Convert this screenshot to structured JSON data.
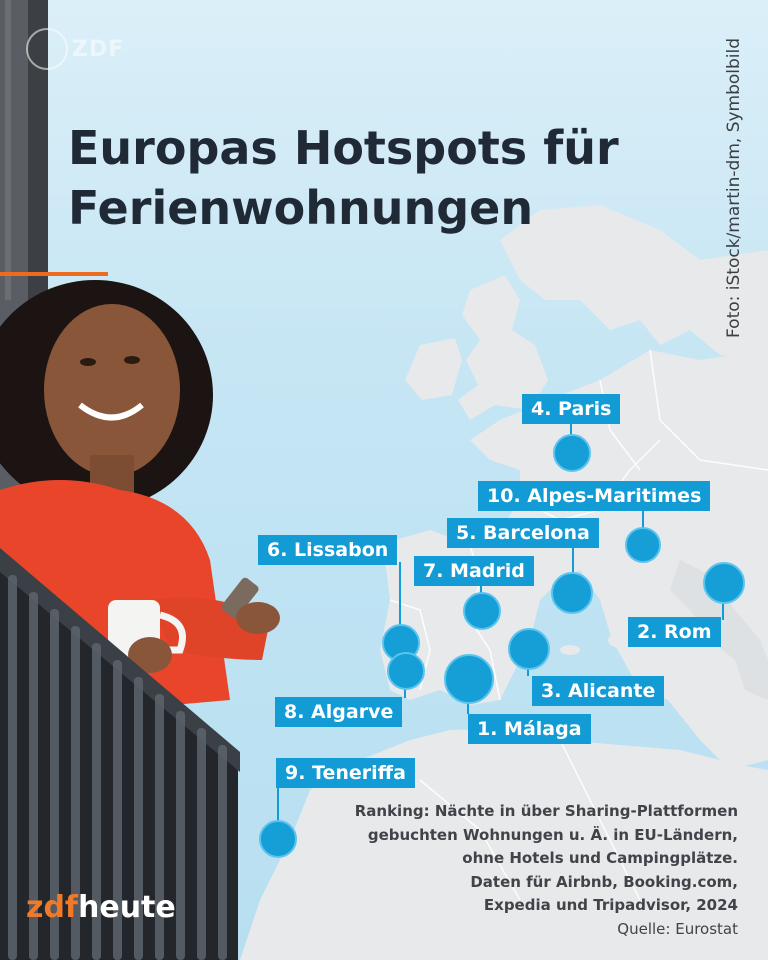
{
  "header": {
    "brand_mark": "ZDF",
    "title_line1": "Europas Hotspots für",
    "title_line2": "Ferienwohnungen",
    "accent_color": "#ee6a1f"
  },
  "photo_credit": "Foto: iStock/martin-dm, Symbolbild",
  "cities": [
    {
      "label": "4. Paris"
    },
    {
      "label": "10. Alpes-Maritimes"
    },
    {
      "label": "5. Barcelona"
    },
    {
      "label": "6. Lissabon"
    },
    {
      "label": "7. Madrid"
    },
    {
      "label": "2. Rom"
    },
    {
      "label": "3. Alicante"
    },
    {
      "label": "8. Algarve"
    },
    {
      "label": "1. Málaga"
    },
    {
      "label": "9. Teneriffa"
    }
  ],
  "footnote": {
    "line1": "Ranking: Nächte in über Sharing-Plattformen",
    "line2": "gebuchten Wohnungen u. Ä. in EU-Ländern,",
    "line3": "ohne Hotels und Campingplätze.",
    "line4": "Daten für Airbnb, Booking.com,",
    "line5": "Expedia und Tripadvisor, 2024",
    "source": "Quelle: Eurostat"
  },
  "logo": {
    "part1": "zdf",
    "part2": "heute"
  },
  "colors": {
    "marker": "#129bd4",
    "land": "#e6e9ec",
    "sky": "#c7e6f4",
    "sweater": "#e8452a"
  }
}
